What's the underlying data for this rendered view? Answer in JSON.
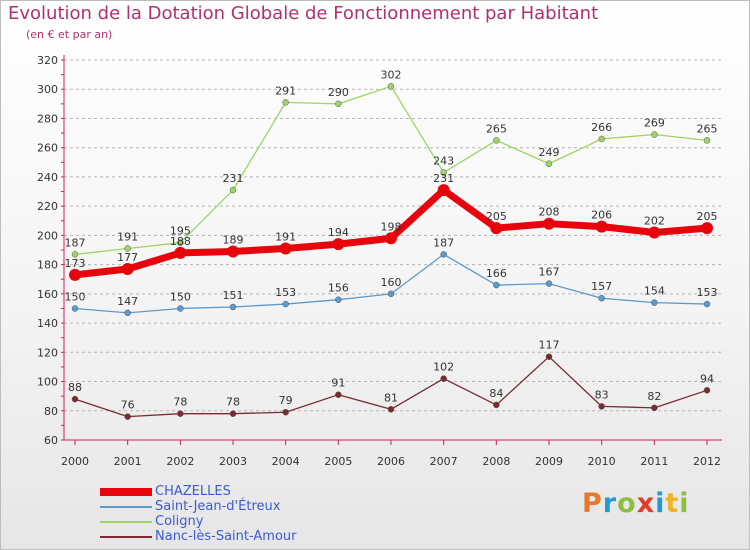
{
  "title": "Evolution de la Dotation Globale de Fonctionnement par Habitant",
  "subtitle": "(en € et par an)",
  "brand": {
    "text": "Proxiti",
    "letters": [
      {
        "ch": "P",
        "color": "#e8762b"
      },
      {
        "ch": "r",
        "color": "#1f9ad6"
      },
      {
        "ch": "o",
        "color": "#8cbf3f"
      },
      {
        "ch": "x",
        "color": "#e23a2b"
      },
      {
        "ch": "i",
        "color": "#1f9ad6"
      },
      {
        "ch": "t",
        "color": "#f0b323"
      },
      {
        "ch": "i",
        "color": "#8cbf3f"
      }
    ]
  },
  "chart_data": {
    "type": "line",
    "x": [
      "2000",
      "2001",
      "2002",
      "2003",
      "2004",
      "2005",
      "2006",
      "2007",
      "2008",
      "2009",
      "2010",
      "2011",
      "2012"
    ],
    "ylim": [
      60,
      320
    ],
    "yticks": [
      60,
      80,
      100,
      120,
      140,
      160,
      180,
      200,
      220,
      240,
      260,
      280,
      300,
      320
    ],
    "grid": "horizontal dashed",
    "legend_position": "bottom-left",
    "series": [
      {
        "name": "CHAZELLES",
        "color": "#e8040c",
        "values": [
          173,
          177,
          188,
          189,
          191,
          194,
          198,
          231,
          205,
          208,
          206,
          202,
          205
        ],
        "labels": [
          "173",
          "177",
          "188",
          "189",
          "191",
          "194",
          "198",
          "231",
          "205",
          "208",
          "206",
          "202",
          "205"
        ]
      },
      {
        "name": "Saint-Jean-d'Étreux",
        "color": "#5b9bcf",
        "values": [
          150,
          147,
          150,
          151,
          153,
          156,
          160,
          187,
          166,
          167,
          157,
          154,
          153
        ],
        "labels": [
          "150",
          "147",
          "150",
          "151",
          "153",
          "156",
          "160",
          "187",
          "166",
          "167",
          "157",
          "154",
          "153"
        ]
      },
      {
        "name": "Coligny",
        "color": "#9ed463",
        "values": [
          187,
          191,
          195,
          231,
          291,
          290,
          302,
          243,
          265,
          249,
          266,
          269,
          265
        ],
        "labels": [
          "187",
          "191",
          "195",
          "231",
          "291",
          "290",
          "302",
          "243",
          "265",
          "249",
          "266",
          "269",
          "265"
        ]
      },
      {
        "name": "Nanc-lès-Saint-Amour",
        "color": "#7a2a30",
        "values": [
          88,
          76,
          78,
          78,
          79,
          91,
          81,
          102,
          84,
          117,
          83,
          82,
          94
        ],
        "labels": [
          "88",
          "76",
          "78",
          "78",
          "79",
          "91",
          "81",
          "102",
          "84",
          "117",
          "83",
          "82",
          "94"
        ]
      }
    ]
  }
}
